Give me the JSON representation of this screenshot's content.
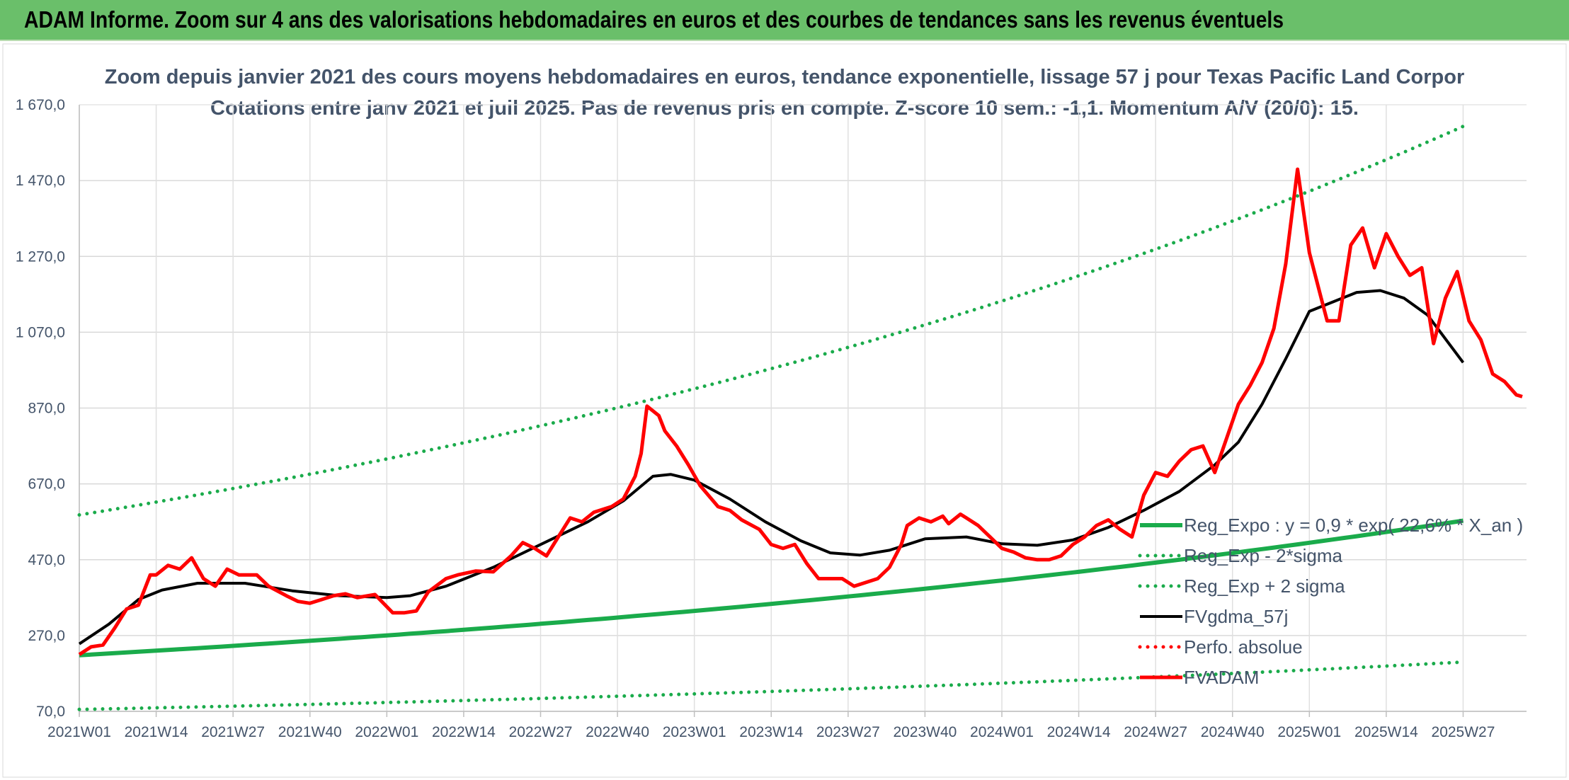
{
  "banner": {
    "title": "ADAM Informe. Zoom sur 4 ans des valorisations hebdomadaires en euros et des courbes de tendances sans les revenus éventuels"
  },
  "colors": {
    "banner_bg": "#6abf6a",
    "trend_green": "#1aab4b",
    "fvadam_red": "#ff0000",
    "fvgdma_black": "#000000",
    "text": "#44546a",
    "grid": "#d9d9d9"
  },
  "chart_data": {
    "type": "line",
    "title_line1": "Zoom depuis janvier 2021 des cours moyens hebdomadaires en euros, tendance exponentielle, lissage 57 j pour Texas Pacific Land Corpor",
    "title_line2": "Cotations entre janv 2021 et juil 2025. Pas de revenus pris en compte. Z-score 10 sem.: -1,1. Momentum A/V (20/0): 15.",
    "ylim": [
      70,
      1670
    ],
    "y_ticks": [
      70,
      270,
      470,
      670,
      870,
      1070,
      1270,
      1470,
      1670
    ],
    "y_tick_labels": [
      "70,0",
      "270,0",
      "470,0",
      "670,0",
      "870,0",
      "1 070,0",
      "1 270,0",
      "1 470,0",
      "1 670,0"
    ],
    "x_tick_labels": [
      "2021W01",
      "2021W14",
      "2021W27",
      "2021W40",
      "2022W01",
      "2022W14",
      "2022W27",
      "2022W40",
      "2023W01",
      "2023W14",
      "2023W27",
      "2023W40",
      "2024W01",
      "2024W14",
      "2024W27",
      "2024W40",
      "2025W01",
      "2025W14",
      "2025W27"
    ],
    "x_label_weeks": [
      0,
      13,
      26,
      39,
      52,
      65,
      78,
      91,
      104,
      117,
      130,
      143,
      156,
      169,
      182,
      195,
      208,
      221,
      234
    ],
    "grid": true,
    "legend_position": "right-inside",
    "legend": [
      {
        "label": "Reg_Expo : y = 0,9 * exp( 22,6% * X_an )",
        "color": "#1aab4b",
        "style": "solid-thick"
      },
      {
        "label": "Reg_Exp - 2*sigma",
        "color": "#1aab4b",
        "style": "dotted"
      },
      {
        "label": "Reg_Exp + 2 sigma",
        "color": "#1aab4b",
        "style": "dotted"
      },
      {
        "label": "FVgdma_57j",
        "color": "#000000",
        "style": "solid"
      },
      {
        "label": "Perfo. absolue",
        "color": "#ff0000",
        "style": "dotted"
      },
      {
        "label": "FVADAM",
        "color": "#ff0000",
        "style": "solid-thick"
      }
    ],
    "series": [
      {
        "name": "Reg_Expo : y = 0,9 * exp( 22,6% * X_an )",
        "color": "#1aab4b",
        "style": "solid-thick",
        "points": [
          [
            0,
            218
          ],
          [
            234,
            573
          ]
        ]
      },
      {
        "name": "Reg_Exp - 2*sigma",
        "color": "#1aab4b",
        "style": "dotted",
        "points": [
          [
            0,
            75
          ],
          [
            234,
            200
          ]
        ]
      },
      {
        "name": "Reg_Exp + 2 sigma",
        "color": "#1aab4b",
        "style": "dotted",
        "points": [
          [
            0,
            588
          ],
          [
            234,
            1613
          ]
        ]
      },
      {
        "name": "FVgdma_57j",
        "color": "#000000",
        "style": "solid",
        "points": [
          [
            0,
            248
          ],
          [
            5,
            300
          ],
          [
            10,
            365
          ],
          [
            14,
            390
          ],
          [
            20,
            408
          ],
          [
            28,
            408
          ],
          [
            36,
            388
          ],
          [
            44,
            375
          ],
          [
            52,
            370
          ],
          [
            56,
            375
          ],
          [
            62,
            400
          ],
          [
            70,
            450
          ],
          [
            78,
            510
          ],
          [
            86,
            570
          ],
          [
            92,
            625
          ],
          [
            97,
            690
          ],
          [
            100,
            695
          ],
          [
            104,
            680
          ],
          [
            110,
            630
          ],
          [
            116,
            570
          ],
          [
            122,
            520
          ],
          [
            127,
            488
          ],
          [
            132,
            482
          ],
          [
            137,
            495
          ],
          [
            143,
            525
          ],
          [
            150,
            530
          ],
          [
            156,
            512
          ],
          [
            162,
            508
          ],
          [
            168,
            522
          ],
          [
            174,
            555
          ],
          [
            180,
            600
          ],
          [
            186,
            650
          ],
          [
            192,
            720
          ],
          [
            196,
            780
          ],
          [
            200,
            880
          ],
          [
            204,
            1000
          ],
          [
            208,
            1125
          ],
          [
            212,
            1150
          ],
          [
            216,
            1175
          ],
          [
            220,
            1180
          ],
          [
            224,
            1160
          ],
          [
            228,
            1115
          ],
          [
            234,
            990
          ]
        ]
      },
      {
        "name": "FVADAM",
        "color": "#ff0000",
        "style": "solid-thick",
        "points": [
          [
            0,
            220
          ],
          [
            2,
            240
          ],
          [
            4,
            245
          ],
          [
            6,
            290
          ],
          [
            8,
            340
          ],
          [
            10,
            350
          ],
          [
            12,
            430
          ],
          [
            13,
            430
          ],
          [
            15,
            455
          ],
          [
            17,
            445
          ],
          [
            19,
            475
          ],
          [
            21,
            420
          ],
          [
            23,
            400
          ],
          [
            25,
            445
          ],
          [
            27,
            430
          ],
          [
            30,
            430
          ],
          [
            32,
            400
          ],
          [
            35,
            375
          ],
          [
            37,
            360
          ],
          [
            39,
            355
          ],
          [
            41,
            365
          ],
          [
            43,
            375
          ],
          [
            45,
            380
          ],
          [
            47,
            370
          ],
          [
            50,
            378
          ],
          [
            53,
            330
          ],
          [
            55,
            330
          ],
          [
            57,
            335
          ],
          [
            59,
            385
          ],
          [
            62,
            420
          ],
          [
            64,
            430
          ],
          [
            67,
            440
          ],
          [
            70,
            438
          ],
          [
            73,
            480
          ],
          [
            75,
            515
          ],
          [
            77,
            500
          ],
          [
            79,
            480
          ],
          [
            81,
            530
          ],
          [
            83,
            580
          ],
          [
            85,
            570
          ],
          [
            87,
            595
          ],
          [
            90,
            610
          ],
          [
            92,
            630
          ],
          [
            94,
            690
          ],
          [
            95,
            750
          ],
          [
            96,
            875
          ],
          [
            98,
            850
          ],
          [
            99,
            810
          ],
          [
            101,
            770
          ],
          [
            103,
            720
          ],
          [
            105,
            665
          ],
          [
            108,
            610
          ],
          [
            110,
            600
          ],
          [
            112,
            575
          ],
          [
            115,
            550
          ],
          [
            117,
            510
          ],
          [
            119,
            500
          ],
          [
            121,
            510
          ],
          [
            123,
            460
          ],
          [
            125,
            420
          ],
          [
            127,
            420
          ],
          [
            129,
            420
          ],
          [
            131,
            400
          ],
          [
            133,
            410
          ],
          [
            135,
            420
          ],
          [
            137,
            450
          ],
          [
            139,
            510
          ],
          [
            140,
            560
          ],
          [
            142,
            580
          ],
          [
            144,
            570
          ],
          [
            146,
            585
          ],
          [
            147,
            565
          ],
          [
            149,
            590
          ],
          [
            150,
            580
          ],
          [
            152,
            560
          ],
          [
            154,
            530
          ],
          [
            156,
            500
          ],
          [
            158,
            490
          ],
          [
            160,
            475
          ],
          [
            162,
            470
          ],
          [
            164,
            470
          ],
          [
            166,
            480
          ],
          [
            168,
            510
          ],
          [
            170,
            530
          ],
          [
            172,
            560
          ],
          [
            174,
            575
          ],
          [
            176,
            550
          ],
          [
            178,
            530
          ],
          [
            180,
            640
          ],
          [
            182,
            700
          ],
          [
            184,
            690
          ],
          [
            186,
            730
          ],
          [
            188,
            760
          ],
          [
            190,
            770
          ],
          [
            192,
            700
          ],
          [
            194,
            790
          ],
          [
            196,
            880
          ],
          [
            198,
            930
          ],
          [
            200,
            990
          ],
          [
            202,
            1080
          ],
          [
            204,
            1250
          ],
          [
            206,
            1500
          ],
          [
            208,
            1280
          ],
          [
            210,
            1160
          ],
          [
            211,
            1100
          ],
          [
            213,
            1100
          ],
          [
            215,
            1300
          ],
          [
            217,
            1345
          ],
          [
            219,
            1240
          ],
          [
            221,
            1330
          ],
          [
            223,
            1270
          ],
          [
            225,
            1220
          ],
          [
            227,
            1240
          ],
          [
            229,
            1040
          ],
          [
            231,
            1160
          ],
          [
            233,
            1230
          ],
          [
            235,
            1100
          ],
          [
            237,
            1050
          ],
          [
            239,
            960
          ],
          [
            241,
            940
          ],
          [
            243,
            905
          ],
          [
            244,
            900
          ]
        ]
      }
    ]
  }
}
